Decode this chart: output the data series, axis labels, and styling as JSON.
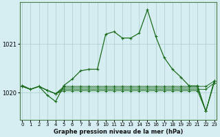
{
  "title": "Graphe pression niveau de la mer (hPa)",
  "background_color": "#d6eef2",
  "grid_color": "#aacccc",
  "line_color": "#1a6b1a",
  "x_ticks": [
    0,
    1,
    2,
    3,
    4,
    5,
    6,
    7,
    8,
    9,
    10,
    11,
    12,
    13,
    14,
    15,
    16,
    17,
    18,
    19,
    20,
    21,
    22,
    23
  ],
  "y_ticks": [
    1020,
    1021
  ],
  "ylim": [
    1019.45,
    1021.85
  ],
  "xlim": [
    -0.3,
    23.3
  ],
  "main_series": [
    1020.15,
    1020.07,
    1020.13,
    1019.95,
    1019.82,
    1020.15,
    1020.28,
    1020.45,
    1020.48,
    1020.48,
    1021.2,
    1021.25,
    1021.12,
    1021.12,
    1021.22,
    1021.7,
    1021.15,
    1020.72,
    1020.48,
    1020.32,
    1020.14,
    1020.14,
    1019.62,
    1020.24
  ],
  "flat1": [
    1020.13,
    1020.07,
    1020.13,
    1020.05,
    1019.98,
    1020.13,
    1020.13,
    1020.13,
    1020.13,
    1020.13,
    1020.13,
    1020.13,
    1020.13,
    1020.13,
    1020.13,
    1020.13,
    1020.13,
    1020.13,
    1020.13,
    1020.13,
    1020.13,
    1020.13,
    1020.13,
    1020.24
  ],
  "flat2": [
    1020.13,
    1020.07,
    1020.13,
    1020.05,
    1019.98,
    1020.1,
    1020.1,
    1020.1,
    1020.1,
    1020.1,
    1020.1,
    1020.1,
    1020.1,
    1020.1,
    1020.1,
    1020.1,
    1020.1,
    1020.1,
    1020.1,
    1020.1,
    1020.1,
    1020.1,
    1019.62,
    1020.24
  ],
  "flat3": [
    1020.13,
    1020.07,
    1020.13,
    1020.05,
    1019.98,
    1020.07,
    1020.07,
    1020.07,
    1020.07,
    1020.07,
    1020.07,
    1020.07,
    1020.07,
    1020.07,
    1020.07,
    1020.07,
    1020.07,
    1020.07,
    1020.07,
    1020.07,
    1020.07,
    1020.07,
    1020.07,
    1020.2
  ],
  "flat4": [
    1020.13,
    1020.07,
    1020.13,
    1020.05,
    1019.98,
    1020.04,
    1020.04,
    1020.04,
    1020.04,
    1020.04,
    1020.04,
    1020.04,
    1020.04,
    1020.04,
    1020.04,
    1020.04,
    1020.04,
    1020.04,
    1020.04,
    1020.04,
    1020.04,
    1020.04,
    1019.62,
    1020.2
  ]
}
